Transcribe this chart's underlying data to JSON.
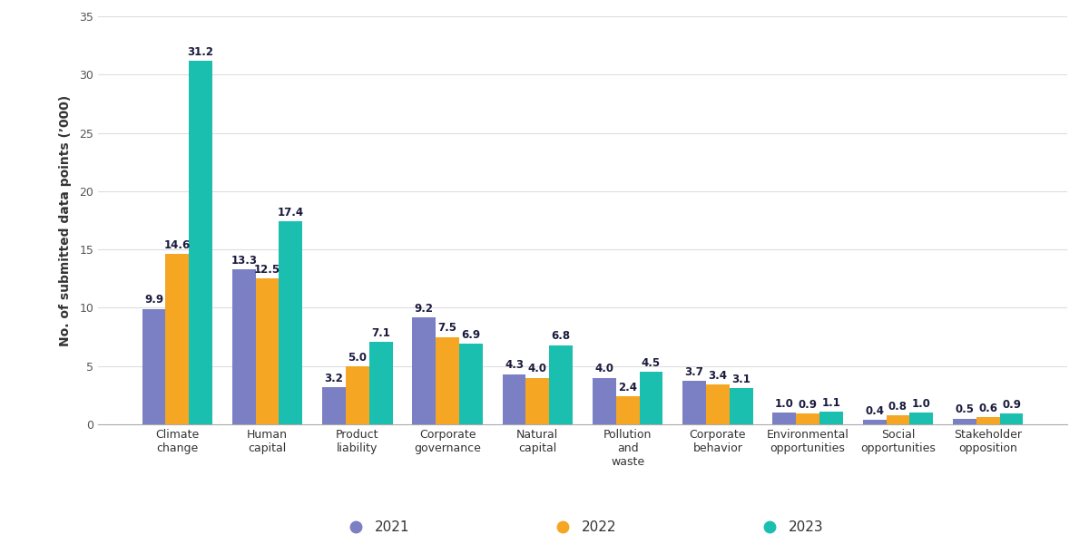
{
  "categories": [
    "Climate\nchange",
    "Human\ncapital",
    "Product\nliability",
    "Corporate\ngovernance",
    "Natural\ncapital",
    "Pollution\nand\nwaste",
    "Corporate\nbehavior",
    "Environmental\nopportunities",
    "Social\nopportunities",
    "Stakeholder\nopposition"
  ],
  "values_2021": [
    9.9,
    13.3,
    3.2,
    9.2,
    4.3,
    4.0,
    3.7,
    1.0,
    0.4,
    0.5
  ],
  "values_2022": [
    14.6,
    12.5,
    5.0,
    7.5,
    4.0,
    2.4,
    3.4,
    0.9,
    0.8,
    0.6
  ],
  "values_2023": [
    31.2,
    17.4,
    7.1,
    6.9,
    6.8,
    4.5,
    3.1,
    1.1,
    1.0,
    0.9
  ],
  "color_2021": "#7b7fc4",
  "color_2022": "#f5a623",
  "color_2023": "#1bbfb0",
  "ylabel": "No. of submitted data points (’000)",
  "ylim": [
    0,
    35
  ],
  "yticks": [
    0,
    5,
    10,
    15,
    20,
    25,
    30,
    35
  ],
  "legend_labels": [
    "2021",
    "2022",
    "2023"
  ],
  "background_color": "#ffffff",
  "bar_width": 0.26,
  "label_fontsize": 10,
  "tick_fontsize": 9,
  "legend_fontsize": 11,
  "value_fontsize": 8.5
}
